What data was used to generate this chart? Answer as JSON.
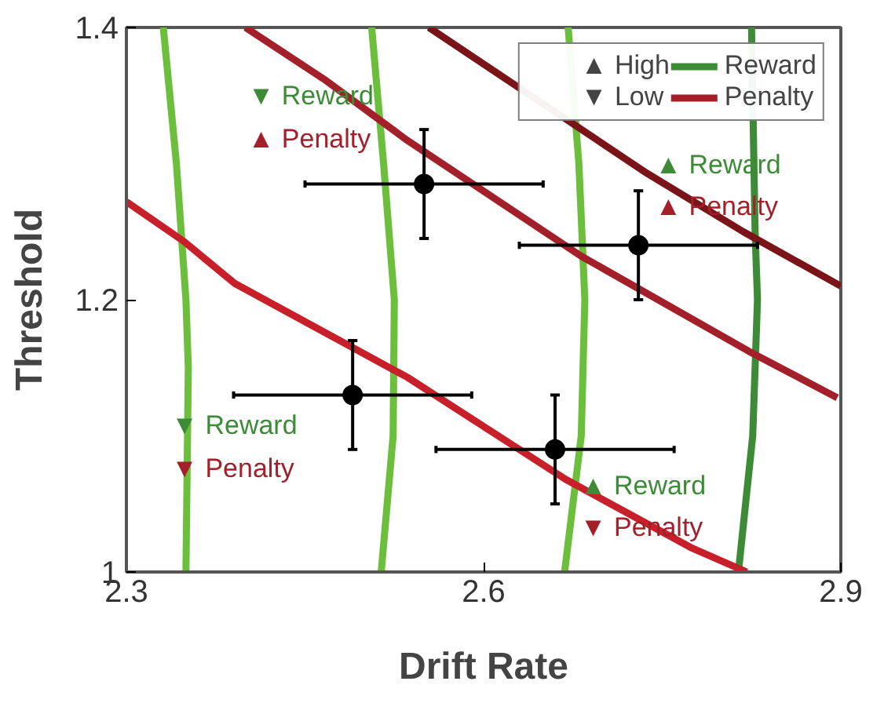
{
  "chart_data": {
    "type": "line",
    "xlabel": "Drift Rate",
    "ylabel": "Threshold",
    "xlim": [
      2.3,
      2.9
    ],
    "ylim": [
      1,
      1.4
    ],
    "xticks": [
      2.3,
      2.6,
      2.9
    ],
    "yticks": [
      1,
      1.2,
      1.4
    ],
    "grid": false,
    "legend": "top right",
    "marker": "none",
    "line_style": "solid",
    "series": [
      {
        "color": "#6cbf3c",
        "x": [
          2.331,
          2.342,
          2.35,
          2.352,
          2.35
        ],
        "values": [
          1.4,
          1.3,
          1.2,
          1.15,
          1.0
        ]
      },
      {
        "color": "#6cbf3c",
        "x": [
          2.506,
          2.516,
          2.525,
          2.524,
          2.514
        ],
        "values": [
          1.4,
          1.3,
          1.2,
          1.1,
          1.0
        ]
      },
      {
        "color": "#6cbf3c",
        "x": [
          2.671,
          2.68,
          2.685,
          2.682,
          2.668
        ],
        "values": [
          1.4,
          1.3,
          1.2,
          1.1,
          1.0
        ]
      },
      {
        "name": "Reward",
        "color": "#3d8b37",
        "x": [
          2.825,
          2.828,
          2.83,
          2.826,
          2.814
        ],
        "values": [
          1.4,
          1.25,
          1.2,
          1.1,
          1.0
        ]
      },
      {
        "color": "#c8202a",
        "x": [
          2.3,
          2.348,
          2.391,
          2.536,
          2.669,
          2.774,
          2.821
        ],
        "values": [
          1.272,
          1.243,
          1.212,
          1.143,
          1.068,
          1.018,
          1.0
        ]
      },
      {
        "name": "Penalty",
        "color": "#a3202a",
        "x": [
          2.4,
          2.466,
          2.536,
          2.682,
          2.823,
          2.897
        ],
        "values": [
          1.4,
          1.362,
          1.317,
          1.232,
          1.162,
          1.128
        ]
      },
      {
        "color": "#7a1418",
        "x": [
          2.554,
          2.737,
          2.818,
          2.9
        ],
        "values": [
          1.4,
          1.293,
          1.25,
          1.21
        ]
      },
      {
        "type": "scatter",
        "marker": "circle",
        "color": "#000000",
        "x": [
          2.55,
          2.73,
          2.49,
          2.66
        ],
        "values": [
          1.285,
          1.24,
          1.13,
          1.09
        ],
        "errors": [
          0.04,
          0.04,
          0.04,
          0.04
        ],
        "xerrors": [
          0.1,
          0.1,
          0.1,
          0.1
        ]
      }
    ],
    "annotations": [
      "▲ High",
      "▼ Low",
      "▼ Reward",
      "▲ Penalty",
      "▲ Reward",
      "▲ Penalty",
      "▼ Reward",
      "▼ Penalty",
      "▲ Reward",
      "▼ Penalty"
    ]
  }
}
